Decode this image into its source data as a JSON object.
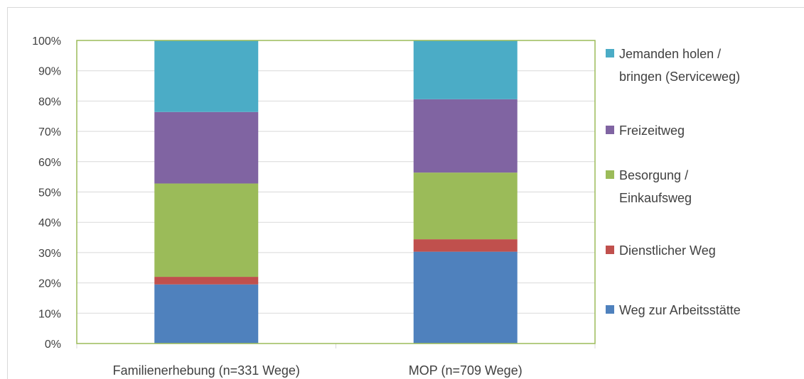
{
  "chart_data": {
    "type": "bar",
    "stacked": true,
    "categories": [
      "Familienerhebung (n=331 Wege)",
      "MOP (n=709 Wege)"
    ],
    "series": [
      {
        "name": "Weg zur Arbeitsstätte",
        "color": "#4f81bd",
        "values": [
          19.5,
          30.3
        ]
      },
      {
        "name": "Dienstlicher Weg",
        "color": "#c0504d",
        "values": [
          2.5,
          4.1
        ]
      },
      {
        "name": "Besorgung / Einkaufsweg",
        "color": "#9bbb59",
        "values": [
          30.8,
          22.0
        ]
      },
      {
        "name": "Freizeitweg",
        "color": "#8064a2",
        "values": [
          23.6,
          24.2
        ]
      },
      {
        "name": "Jemanden holen / bringen (Serviceweg)",
        "color": "#4bacc6",
        "values": [
          23.6,
          19.4
        ]
      }
    ],
    "y_ticks": [
      "0%",
      "10%",
      "20%",
      "30%",
      "40%",
      "50%",
      "60%",
      "70%",
      "80%",
      "90%",
      "100%"
    ],
    "ylim": [
      0,
      100
    ],
    "grid": true,
    "legend_position": "right",
    "legend_labels": [
      [
        "Jemanden holen /",
        "bringen (Serviceweg)"
      ],
      [
        "Freizeitweg"
      ],
      [
        "Besorgung /",
        "Einkaufsweg"
      ],
      [
        "Dienstlicher Weg"
      ],
      [
        "Weg zur Arbeitsstätte"
      ]
    ],
    "plot_border_color": "#9bbb59"
  }
}
